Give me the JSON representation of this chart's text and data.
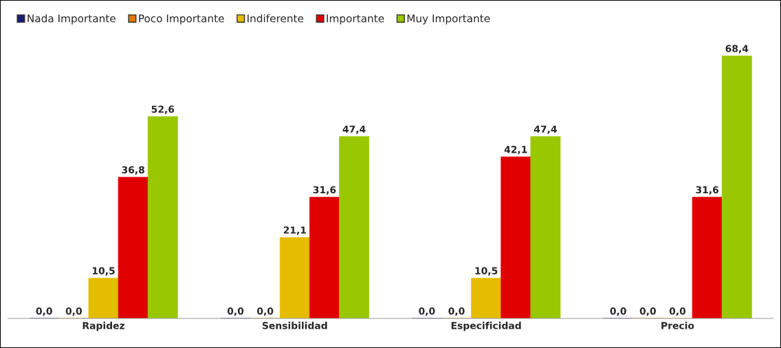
{
  "chart_data": {
    "type": "bar",
    "categories": [
      "Rapidez",
      "Sensibilidad",
      "Especificidad",
      "Precio"
    ],
    "series": [
      {
        "name": "Nada Importante",
        "color": "#1c1c78",
        "values": [
          0.0,
          0.0,
          0.0,
          0.0
        ],
        "value_labels": [
          "0,0",
          "0,0",
          "0,0",
          "0,0"
        ]
      },
      {
        "name": "Poco Importante",
        "color": "#e07800",
        "values": [
          0.0,
          0.0,
          0.0,
          0.0
        ],
        "value_labels": [
          "0,0",
          "0,0",
          "0,0",
          "0,0"
        ]
      },
      {
        "name": "Indiferente",
        "color": "#e6bc00",
        "values": [
          10.5,
          21.1,
          10.5,
          0.0
        ],
        "value_labels": [
          "10,5",
          "21,1",
          "10,5",
          "0,0"
        ]
      },
      {
        "name": "Importante",
        "color": "#e00000",
        "values": [
          36.8,
          31.6,
          42.1,
          31.6
        ],
        "value_labels": [
          "36,8",
          "31,6",
          "42,1",
          "31,6"
        ]
      },
      {
        "name": "Muy Importante",
        "color": "#99c800",
        "values": [
          52.6,
          47.4,
          47.4,
          68.4
        ],
        "value_labels": [
          "52,6",
          "47,4",
          "47,4",
          "68,4"
        ]
      }
    ],
    "legend": "top left",
    "grid": false
  }
}
